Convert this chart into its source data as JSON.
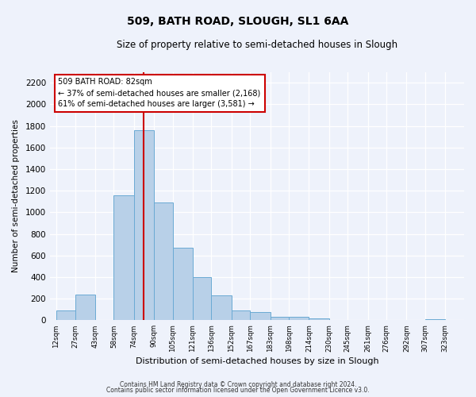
{
  "title": "509, BATH ROAD, SLOUGH, SL1 6AA",
  "subtitle": "Size of property relative to semi-detached houses in Slough",
  "xlabel": "Distribution of semi-detached houses by size in Slough",
  "ylabel": "Number of semi-detached properties",
  "bin_edges": [
    12,
    27,
    43,
    58,
    74,
    90,
    105,
    121,
    136,
    152,
    167,
    183,
    198,
    214,
    230,
    245,
    261,
    276,
    292,
    307,
    323
  ],
  "bar_heights": [
    90,
    240,
    0,
    1160,
    1760,
    1090,
    670,
    400,
    230,
    90,
    75,
    35,
    30,
    20,
    0,
    0,
    0,
    0,
    0,
    10
  ],
  "bar_color": "#b8d0e8",
  "bar_edge_color": "#6aaad4",
  "property_value": 82,
  "vline_color": "#cc0000",
  "annotation_title": "509 BATH ROAD: 82sqm",
  "annotation_line1": "← 37% of semi-detached houses are smaller (2,168)",
  "annotation_line2": "61% of semi-detached houses are larger (3,581) →",
  "annotation_box_facecolor": "#ffffff",
  "annotation_box_edgecolor": "#cc0000",
  "tick_labels": [
    "12sqm",
    "27sqm",
    "43sqm",
    "58sqm",
    "74sqm",
    "90sqm",
    "105sqm",
    "121sqm",
    "136sqm",
    "152sqm",
    "167sqm",
    "183sqm",
    "198sqm",
    "214sqm",
    "230sqm",
    "245sqm",
    "261sqm",
    "276sqm",
    "292sqm",
    "307sqm",
    "323sqm"
  ],
  "ylim": [
    0,
    2300
  ],
  "xlim": [
    7,
    338
  ],
  "yticks": [
    0,
    200,
    400,
    600,
    800,
    1000,
    1200,
    1400,
    1600,
    1800,
    2000,
    2200
  ],
  "background_color": "#eef2fb",
  "grid_color": "#ffffff",
  "footer1": "Contains HM Land Registry data © Crown copyright and database right 2024.",
  "footer2": "Contains public sector information licensed under the Open Government Licence v3.0."
}
